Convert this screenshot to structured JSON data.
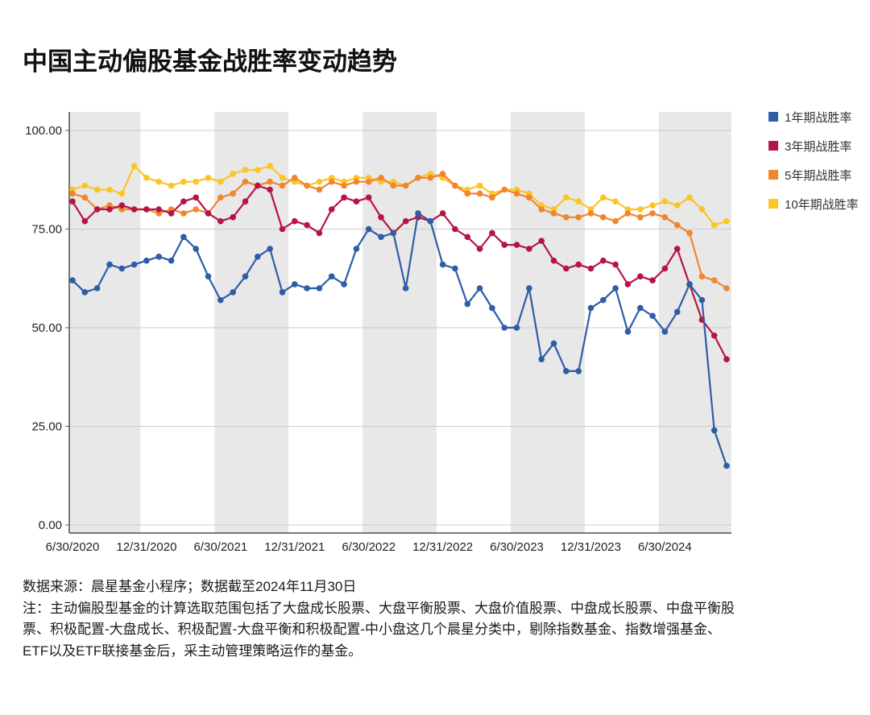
{
  "title": "中国主动偏股基金战胜率变动趋势",
  "footer": {
    "source": "数据来源：晨星基金小程序；数据截至2024年11月30日",
    "note": "注：主动偏股型基金的计算选取范围包括了大盘成长股票、大盘平衡股票、大盘价值股票、中盘成长股票、中盘平衡股票、积极配置-大盘成长、积极配置-大盘平衡和积极配置-中小盘这几个晨星分类中，剔除指数基金、指数增强基金、ETF以及ETF联接基金后，采主动管理策略运作的基金。"
  },
  "chart_data": {
    "type": "line",
    "title": "中国主动偏股基金战胜率变动趋势",
    "x_count": 54,
    "x_start": "2020-06",
    "x_end": "2024-11",
    "x_frequency": "monthly",
    "ylim": [
      0,
      100
    ],
    "grid": "horizontal",
    "legend_position": "right",
    "band_fill": "#e8e8e8",
    "axis_color": "#4d4d4d",
    "grid_color": "#cccccc",
    "y_ticks": [
      "0.00",
      "25.00",
      "50.00",
      "75.00",
      "100.00"
    ],
    "x_ticks": [
      {
        "label": "6/30/2020",
        "month": 0
      },
      {
        "label": "12/31/2020",
        "month": 6
      },
      {
        "label": "6/30/2021",
        "month": 12
      },
      {
        "label": "12/31/2021",
        "month": 18
      },
      {
        "label": "6/30/2022",
        "month": 24
      },
      {
        "label": "12/31/2022",
        "month": 30
      },
      {
        "label": "6/30/2023",
        "month": 36
      },
      {
        "label": "12/31/2023",
        "month": 42
      },
      {
        "label": "6/30/2024",
        "month": 48
      }
    ],
    "series": [
      {
        "key": "1y",
        "name": "1年期战胜率",
        "color": "#2d5da6",
        "values": [
          62,
          59,
          60,
          66,
          65,
          66,
          67,
          68,
          67,
          73,
          70,
          63,
          57,
          59,
          63,
          68,
          70,
          59,
          61,
          60,
          60,
          63,
          61,
          70,
          75,
          73,
          74,
          60,
          79,
          77,
          66,
          65,
          56,
          60,
          55,
          50,
          50,
          60,
          42,
          46,
          39,
          39,
          55,
          57,
          60,
          49,
          55,
          53,
          49,
          54,
          61,
          57,
          24,
          15
        ]
      },
      {
        "key": "3y",
        "name": "3年期战胜率",
        "color": "#b51545",
        "values": [
          82,
          77,
          80,
          80,
          81,
          80,
          80,
          80,
          79,
          82,
          83,
          79,
          77,
          78,
          82,
          86,
          85,
          75,
          77,
          76,
          74,
          80,
          83,
          82,
          83,
          78,
          74,
          77,
          78,
          77,
          79,
          75,
          73,
          70,
          74,
          71,
          71,
          70,
          72,
          67,
          65,
          66,
          65,
          67,
          66,
          61,
          63,
          62,
          65,
          70,
          61,
          52,
          48,
          42
        ]
      },
      {
        "key": "5y",
        "name": "5年期战胜率",
        "color": "#ef8630",
        "values": [
          84,
          83,
          80,
          81,
          80,
          80,
          80,
          79,
          80,
          79,
          80,
          79,
          83,
          84,
          87,
          86,
          87,
          86,
          88,
          86,
          85,
          87,
          86,
          87,
          87,
          88,
          86,
          86,
          88,
          88,
          89,
          86,
          84,
          84,
          83,
          85,
          84,
          83,
          80,
          79,
          78,
          78,
          79,
          78,
          77,
          79,
          78,
          79,
          78,
          76,
          74,
          63,
          62,
          60
        ]
      },
      {
        "key": "10y",
        "name": "10年期战胜率",
        "color": "#fcc425",
        "values": [
          85,
          86,
          85,
          85,
          84,
          91,
          88,
          87,
          86,
          87,
          87,
          88,
          87,
          89,
          90,
          90,
          91,
          88,
          87,
          86,
          87,
          88,
          87,
          88,
          88,
          87,
          87,
          86,
          88,
          89,
          88,
          86,
          85,
          86,
          84,
          85,
          85,
          84,
          81,
          80,
          83,
          82,
          80,
          83,
          82,
          80,
          80,
          81,
          82,
          81,
          83,
          80,
          76,
          77
        ]
      }
    ]
  }
}
